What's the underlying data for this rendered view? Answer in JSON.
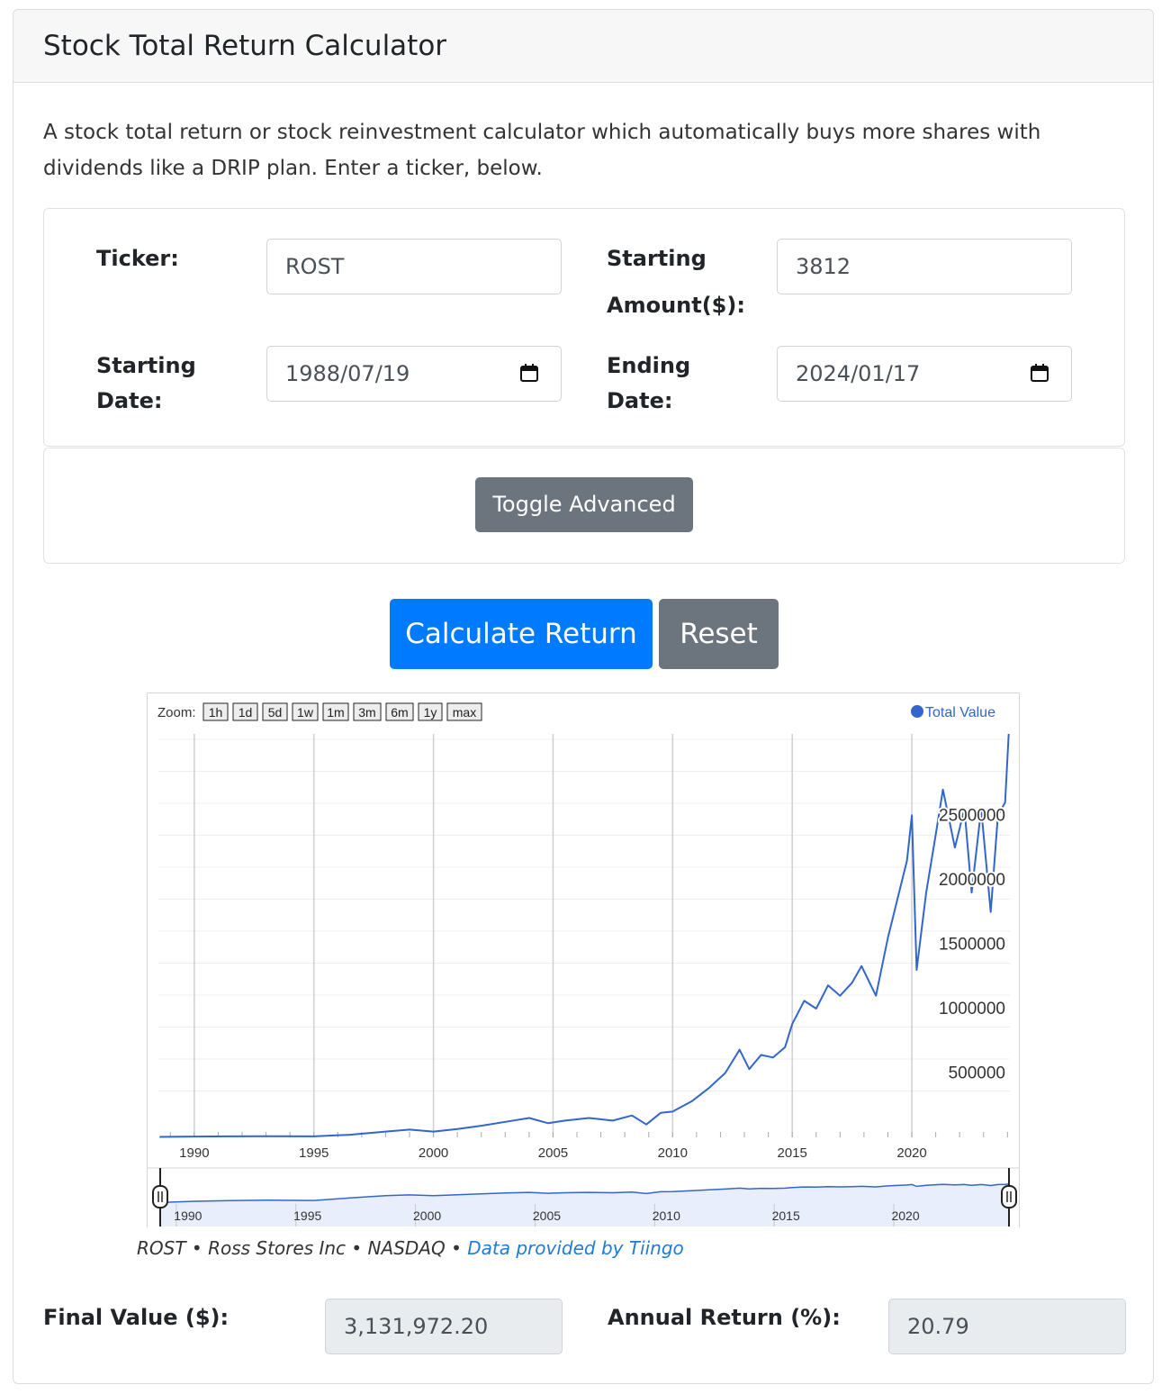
{
  "header": {
    "title": "Stock Total Return Calculator"
  },
  "intro": "A stock total return or stock reinvestment calculator which automatically buys more shares with dividends like a DRIP plan. Enter a ticker, below.",
  "form": {
    "ticker_label": "Ticker:",
    "ticker_value": "ROST",
    "amount_label_1": "Starting",
    "amount_label_2": "Amount($):",
    "amount_value": "3812",
    "start_label_1": "Starting",
    "start_label_2": "Date:",
    "start_value": "1988/07/19",
    "end_label_1": "Ending",
    "end_label_2": "Date:",
    "end_value": "2024/01/17"
  },
  "buttons": {
    "toggle_advanced": "Toggle Advanced",
    "calculate": "Calculate Return",
    "reset": "Reset"
  },
  "chart_data": {
    "type": "line",
    "zoom_label": "Zoom:",
    "zoom_buttons": [
      "1h",
      "1d",
      "5d",
      "1w",
      "1m",
      "3m",
      "6m",
      "1y",
      "max"
    ],
    "legend": [
      "Total Value"
    ],
    "series": [
      {
        "name": "Total Value",
        "color": "#3366cc",
        "points": [
          [
            1988.55,
            3812
          ],
          [
            1990.0,
            6000
          ],
          [
            1991.5,
            7500
          ],
          [
            1993.0,
            9000
          ],
          [
            1995.0,
            8000
          ],
          [
            1996.5,
            20000
          ],
          [
            1998.0,
            45000
          ],
          [
            1999.0,
            60000
          ],
          [
            2000.0,
            45000
          ],
          [
            2001.0,
            65000
          ],
          [
            2002.0,
            90000
          ],
          [
            2003.0,
            120000
          ],
          [
            2004.0,
            150000
          ],
          [
            2004.8,
            110000
          ],
          [
            2005.5,
            130000
          ],
          [
            2006.5,
            150000
          ],
          [
            2007.5,
            130000
          ],
          [
            2008.3,
            170000
          ],
          [
            2008.9,
            100000
          ],
          [
            2009.5,
            190000
          ],
          [
            2010.0,
            200000
          ],
          [
            2010.8,
            280000
          ],
          [
            2011.5,
            380000
          ],
          [
            2012.2,
            500000
          ],
          [
            2012.8,
            680000
          ],
          [
            2013.2,
            530000
          ],
          [
            2013.7,
            640000
          ],
          [
            2014.2,
            620000
          ],
          [
            2014.7,
            700000
          ],
          [
            2015.0,
            880000
          ],
          [
            2015.5,
            1060000
          ],
          [
            2016.0,
            1000000
          ],
          [
            2016.5,
            1180000
          ],
          [
            2017.0,
            1100000
          ],
          [
            2017.5,
            1200000
          ],
          [
            2017.9,
            1330000
          ],
          [
            2018.5,
            1100000
          ],
          [
            2019.0,
            1550000
          ],
          [
            2019.4,
            1850000
          ],
          [
            2019.8,
            2150000
          ],
          [
            2020.0,
            2500000
          ],
          [
            2020.2,
            1300000
          ],
          [
            2020.6,
            1900000
          ],
          [
            2021.0,
            2350000
          ],
          [
            2021.3,
            2700000
          ],
          [
            2021.8,
            2250000
          ],
          [
            2022.2,
            2550000
          ],
          [
            2022.5,
            1900000
          ],
          [
            2022.9,
            2550000
          ],
          [
            2023.3,
            1750000
          ],
          [
            2023.6,
            2500000
          ],
          [
            2023.9,
            2600000
          ],
          [
            2024.05,
            3131972
          ]
        ]
      }
    ],
    "y_ticks": [
      500000,
      1000000,
      1500000,
      2000000,
      2500000
    ],
    "x_ticks": [
      1990,
      1995,
      2000,
      2005,
      2010,
      2015,
      2020
    ],
    "xlim": [
      1988.5,
      2024.1
    ],
    "ylim": [
      0,
      3131972
    ]
  },
  "attribution": {
    "text": "ROST • Ross Stores Inc • NASDAQ • ",
    "link": "Data provided by Tiingo"
  },
  "results": {
    "final_label": "Final Value ($):",
    "final_value": "3,131,972.20",
    "annual_label": "Annual Return (%):",
    "annual_value": "20.79"
  }
}
